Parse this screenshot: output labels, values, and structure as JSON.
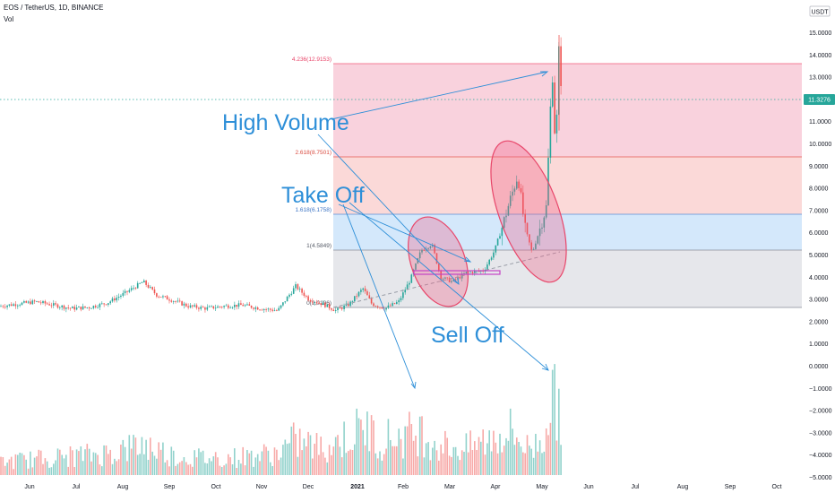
{
  "header": {
    "title": "EOS / TetherUS, 1D, BINANCE",
    "indicator": "Vol"
  },
  "price_axis": {
    "currency": "USDT",
    "current_price_label": "11.3276"
  },
  "colors": {
    "bull": "#26a69a",
    "bear": "#ef5350",
    "annotation": "#2e8fd8",
    "fib_red": "#f05a78",
    "fib_blue": "#5b8fd6"
  },
  "chart_data": {
    "type": "candlestick",
    "title": "EOS / TetherUS, 1D, BINANCE",
    "ylim": [
      -5.5,
      15.2
    ],
    "y_ticks": [
      "15.0000",
      "14.0000",
      "13.0000",
      "12.0000",
      "11.0000",
      "10.0000",
      "9.0000",
      "8.0000",
      "7.0000",
      "6.0000",
      "5.0000",
      "4.0000",
      "3.0000",
      "2.0000",
      "1.0000",
      "0.0000",
      "−1.0000",
      "−2.0000",
      "−3.0000",
      "−4.0000",
      "−5.0000"
    ],
    "x_ticks": [
      "Jun",
      "Jul",
      "Aug",
      "Sep",
      "Oct",
      "Nov",
      "Dec",
      "2021",
      "Feb",
      "Mar",
      "Apr",
      "May",
      "Jun",
      "Jul",
      "Aug",
      "Sep",
      "Oct"
    ],
    "last_price": 11.3276,
    "price_path": [
      [
        0,
        2.7
      ],
      [
        20,
        2.8
      ],
      [
        40,
        2.9
      ],
      [
        60,
        2.75
      ],
      [
        80,
        2.6
      ],
      [
        100,
        2.65
      ],
      [
        120,
        2.85
      ],
      [
        140,
        3.3
      ],
      [
        160,
        3.8
      ],
      [
        175,
        3.2
      ],
      [
        190,
        3.0
      ],
      [
        210,
        2.7
      ],
      [
        230,
        2.6
      ],
      [
        250,
        2.7
      ],
      [
        270,
        2.75
      ],
      [
        290,
        2.6
      ],
      [
        310,
        2.5
      ],
      [
        330,
        3.6
      ],
      [
        345,
        3.0
      ],
      [
        360,
        2.8
      ],
      [
        375,
        2.5
      ],
      [
        390,
        2.8
      ],
      [
        405,
        3.5
      ],
      [
        415,
        2.8
      ],
      [
        430,
        2.6
      ],
      [
        445,
        2.9
      ],
      [
        458,
        3.9
      ],
      [
        470,
        5.2
      ],
      [
        482,
        5.5
      ],
      [
        492,
        4.0
      ],
      [
        505,
        3.8
      ],
      [
        520,
        4.2
      ],
      [
        540,
        4.3
      ],
      [
        552,
        5.2
      ],
      [
        560,
        6.2
      ],
      [
        568,
        7.3
      ],
      [
        578,
        8.6
      ],
      [
        586,
        6.2
      ],
      [
        594,
        5.1
      ],
      [
        602,
        6.1
      ],
      [
        610,
        7.2
      ],
      [
        614,
        11.4
      ],
      [
        617,
        13.2
      ],
      [
        620,
        9.4
      ],
      [
        624,
        14.5
      ],
      [
        628,
        11.3
      ]
    ],
    "fib_levels": [
      {
        "ratio": "0",
        "value": 2.0106,
        "label": "0(2.0106)"
      },
      {
        "ratio": "1",
        "value": 4.5849,
        "label": "1(4.5849)"
      },
      {
        "ratio": "1.618",
        "value": 6.1758,
        "label": "1.618(6.1758)"
      },
      {
        "ratio": "2.618",
        "value": 8.7501,
        "label": "2.618(8.7501)"
      },
      {
        "ratio": "4.236",
        "value": 12.9153,
        "label": "4.236(12.9153)"
      }
    ],
    "volume_profile": [
      [
        0,
        0.15
      ],
      [
        60,
        0.2
      ],
      [
        120,
        0.25
      ],
      [
        160,
        0.35
      ],
      [
        200,
        0.2
      ],
      [
        260,
        0.2
      ],
      [
        310,
        0.25
      ],
      [
        330,
        0.4
      ],
      [
        360,
        0.3
      ],
      [
        390,
        0.45
      ],
      [
        410,
        0.55
      ],
      [
        420,
        0.4
      ],
      [
        450,
        0.45
      ],
      [
        470,
        0.5
      ],
      [
        490,
        0.35
      ],
      [
        520,
        0.3
      ],
      [
        555,
        0.45
      ],
      [
        570,
        0.5
      ],
      [
        590,
        0.3
      ],
      [
        605,
        0.4
      ],
      [
        614,
        0.9
      ],
      [
        618,
        0.75
      ],
      [
        622,
        0.95
      ],
      [
        628,
        0.7
      ]
    ],
    "annotations": [
      "High Volume",
      "Take Off",
      "Sell Off"
    ]
  }
}
